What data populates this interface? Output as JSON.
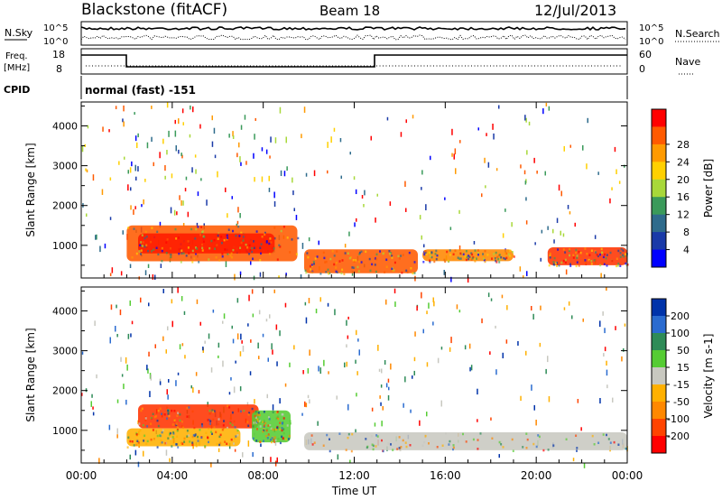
{
  "header": {
    "station": "Blackstone (fitACF)",
    "beam": "Beam 18",
    "date": "12/Jul/2013"
  },
  "strips": {
    "nsky_label": "N.Sky",
    "nsky_ticks": [
      "10^5",
      "10^0"
    ],
    "nsearch_label": "N.Search",
    "nsearch_ticks": [
      "10^5",
      "10^0"
    ],
    "freq_label_1": "Freq.",
    "freq_label_2": "[MHz]",
    "freq_ticks": [
      "18",
      "8"
    ],
    "nave_label": "Nave",
    "nave_ticks": [
      "60",
      "0"
    ],
    "cpid_label": "CPID",
    "cpid_text": "normal (fast) -151"
  },
  "chart_data": [
    {
      "type": "heatmap",
      "name": "power",
      "ylabel": "Slant Range [km]",
      "yticks": [
        1000,
        2000,
        3000,
        4000
      ],
      "ylim": [
        180,
        4600
      ],
      "xlim": [
        0,
        24
      ],
      "xticks": [
        "00:00",
        "04:00",
        "08:00",
        "12:00",
        "16:00",
        "20:00",
        "00:00"
      ],
      "colorbar_label": "Power [dB]",
      "colorbar_ticks": [
        4,
        8,
        12,
        16,
        20,
        24,
        28
      ],
      "colorbar_colors": [
        "#0000ff",
        "#1a3aa8",
        "#2e6b8c",
        "#3a9a5a",
        "#a8d83a",
        "#ffd000",
        "#ff9a00",
        "#ff5a00",
        "#ff0000"
      ],
      "regions": [
        {
          "t0": 2.0,
          "t1": 9.5,
          "r0": 600,
          "r1": 1500,
          "color": "#ff5a00"
        },
        {
          "t0": 2.5,
          "t1": 8.5,
          "r0": 800,
          "r1": 1300,
          "color": "#ff1a00"
        },
        {
          "t0": 9.8,
          "t1": 14.8,
          "r0": 300,
          "r1": 900,
          "color": "#ff5a00"
        },
        {
          "t0": 15.0,
          "t1": 19.0,
          "r0": 600,
          "r1": 900,
          "color": "#ff8800"
        },
        {
          "t0": 20.5,
          "t1": 24.0,
          "r0": 500,
          "r1": 950,
          "color": "#ff3300"
        }
      ]
    },
    {
      "type": "heatmap",
      "name": "velocity",
      "ylabel": "Slant Range [km]",
      "yticks": [
        1000,
        2000,
        3000,
        4000
      ],
      "ylim": [
        180,
        4600
      ],
      "xlim": [
        0,
        24
      ],
      "xticks": [
        "00:00",
        "04:00",
        "08:00",
        "12:00",
        "16:00",
        "20:00",
        "00:00"
      ],
      "xlabel": "Time UT",
      "colorbar_label": "Velocity [m s-1]",
      "colorbar_ticks": [
        200,
        100,
        50,
        15,
        -15,
        -50,
        -100,
        -200
      ],
      "colorbar_colors": [
        "#0033aa",
        "#2a6bd0",
        "#2e8b57",
        "#55cc33",
        "#c8c8c0",
        "#ffb000",
        "#ff8800",
        "#ff4400",
        "#ff0000"
      ],
      "regions": [
        {
          "t0": 2.5,
          "t1": 7.8,
          "r0": 1050,
          "r1": 1650,
          "color": "#ff3300"
        },
        {
          "t0": 2.0,
          "t1": 7.0,
          "r0": 600,
          "r1": 1050,
          "color": "#ffb000"
        },
        {
          "t0": 7.5,
          "t1": 9.2,
          "r0": 700,
          "r1": 1500,
          "color": "#55cc33"
        },
        {
          "t0": 9.8,
          "t1": 24.0,
          "r0": 500,
          "r1": 950,
          "color": "#c8c8c0"
        }
      ]
    }
  ]
}
